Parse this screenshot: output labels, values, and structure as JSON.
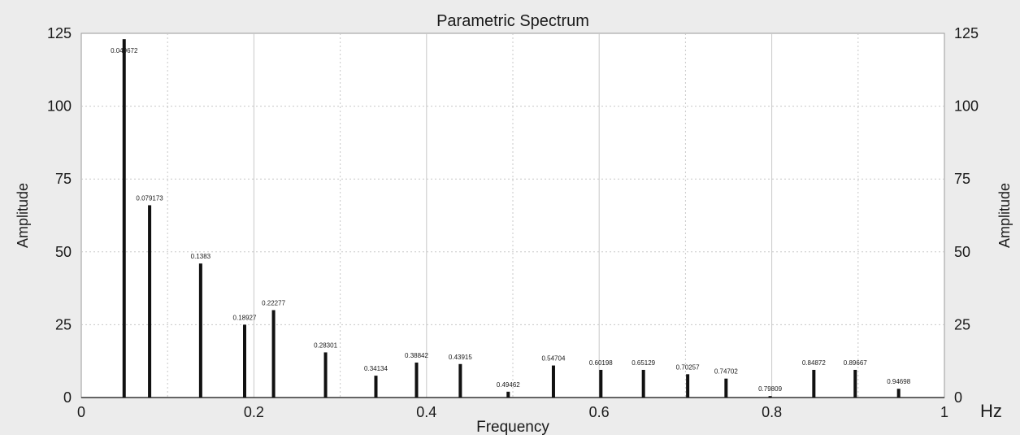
{
  "chart_data": {
    "type": "bar",
    "title": "Parametric Spectrum",
    "xlabel": "Frequency",
    "ylabel": "Amplitude",
    "ylabel_right": "Amplitude",
    "unit_label": "Hz",
    "xlim": [
      0,
      1
    ],
    "ylim": [
      0,
      125
    ],
    "xticks": [
      "0",
      "0.2",
      "0.4",
      "0.6",
      "0.8",
      "1"
    ],
    "yticks": [
      "0",
      "25",
      "50",
      "75",
      "100",
      "125"
    ],
    "grid": true,
    "points": [
      {
        "x": 0.049672,
        "y": 123,
        "label": "0.049672"
      },
      {
        "x": 0.079173,
        "y": 66,
        "label": "0.079173"
      },
      {
        "x": 0.1383,
        "y": 46,
        "label": "0.1383"
      },
      {
        "x": 0.18927,
        "y": 25,
        "label": "0.18927"
      },
      {
        "x": 0.22277,
        "y": 30,
        "label": "0.22277"
      },
      {
        "x": 0.28301,
        "y": 15.5,
        "label": "0.28301"
      },
      {
        "x": 0.34134,
        "y": 7.5,
        "label": "0.34134"
      },
      {
        "x": 0.38842,
        "y": 12,
        "label": "0.38842"
      },
      {
        "x": 0.43915,
        "y": 11.5,
        "label": "0.43915"
      },
      {
        "x": 0.49462,
        "y": 2,
        "label": "0.49462"
      },
      {
        "x": 0.54704,
        "y": 11,
        "label": "0.54704"
      },
      {
        "x": 0.60198,
        "y": 9.5,
        "label": "0.60198"
      },
      {
        "x": 0.65129,
        "y": 9.5,
        "label": "0.65129"
      },
      {
        "x": 0.70257,
        "y": 8,
        "label": "0.70257"
      },
      {
        "x": 0.74702,
        "y": 6.5,
        "label": "0.74702"
      },
      {
        "x": 0.79809,
        "y": 0.5,
        "label": "0.79809"
      },
      {
        "x": 0.84872,
        "y": 9.5,
        "label": "0.84872"
      },
      {
        "x": 0.89667,
        "y": 9.5,
        "label": "0.89667"
      },
      {
        "x": 0.94698,
        "y": 3,
        "label": "0.94698"
      }
    ]
  },
  "colors": {
    "background": "#ececec",
    "plot_area": "#ffffff",
    "bar": "#111111",
    "grid": "#c8c8c8",
    "text": "#1a1a1a"
  }
}
